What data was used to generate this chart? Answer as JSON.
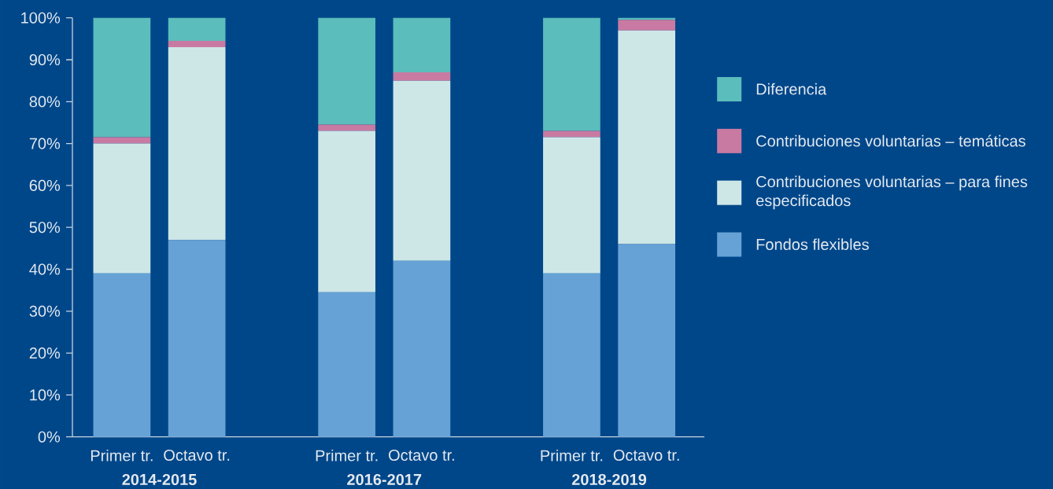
{
  "chart_data": {
    "type": "bar",
    "stacked": true,
    "categories": [
      "Primer tr.",
      "Octavo tr.",
      null,
      "Primer tr.",
      "Octavo tr.",
      null,
      "Primer tr.",
      "Octavo tr."
    ],
    "series": [
      {
        "name": "Fondos flexibles",
        "color": "#66a2d6",
        "values": [
          39,
          47,
          null,
          34.5,
          42,
          null,
          39,
          46
        ]
      },
      {
        "name": "Contribuciones voluntarias – para fines especificados",
        "color": "#cde7e7",
        "values": [
          31,
          46,
          null,
          38.5,
          43,
          null,
          32.5,
          51
        ]
      },
      {
        "name": "Contribuciones voluntarias – temáticas",
        "color": "#c97aa2",
        "values": [
          1.5,
          1.5,
          null,
          1.5,
          2,
          null,
          1.5,
          2.5
        ]
      },
      {
        "name": "Diferencia",
        "color": "#5bbdbc",
        "values": [
          28.5,
          5.5,
          null,
          25.5,
          13,
          null,
          27,
          0.5
        ]
      }
    ],
    "ylim": [
      0,
      100
    ],
    "yticks": [
      {
        "value": 0,
        "label": "0%"
      },
      {
        "value": 10,
        "label": "10%"
      },
      {
        "value": 20,
        "label": "20%"
      },
      {
        "value": 30,
        "label": "30%"
      },
      {
        "value": 40,
        "label": "40%"
      },
      {
        "value": 50,
        "label": "50%"
      },
      {
        "value": 60,
        "label": "60%"
      },
      {
        "value": 70,
        "label": "70%"
      },
      {
        "value": 80,
        "label": "80%"
      },
      {
        "value": 90,
        "label": "90%"
      },
      {
        "value": 100,
        "label": "100%"
      }
    ],
    "annotations": [
      "2014-2015",
      "2016-2017",
      "2018-2019"
    ],
    "legend": "right"
  }
}
